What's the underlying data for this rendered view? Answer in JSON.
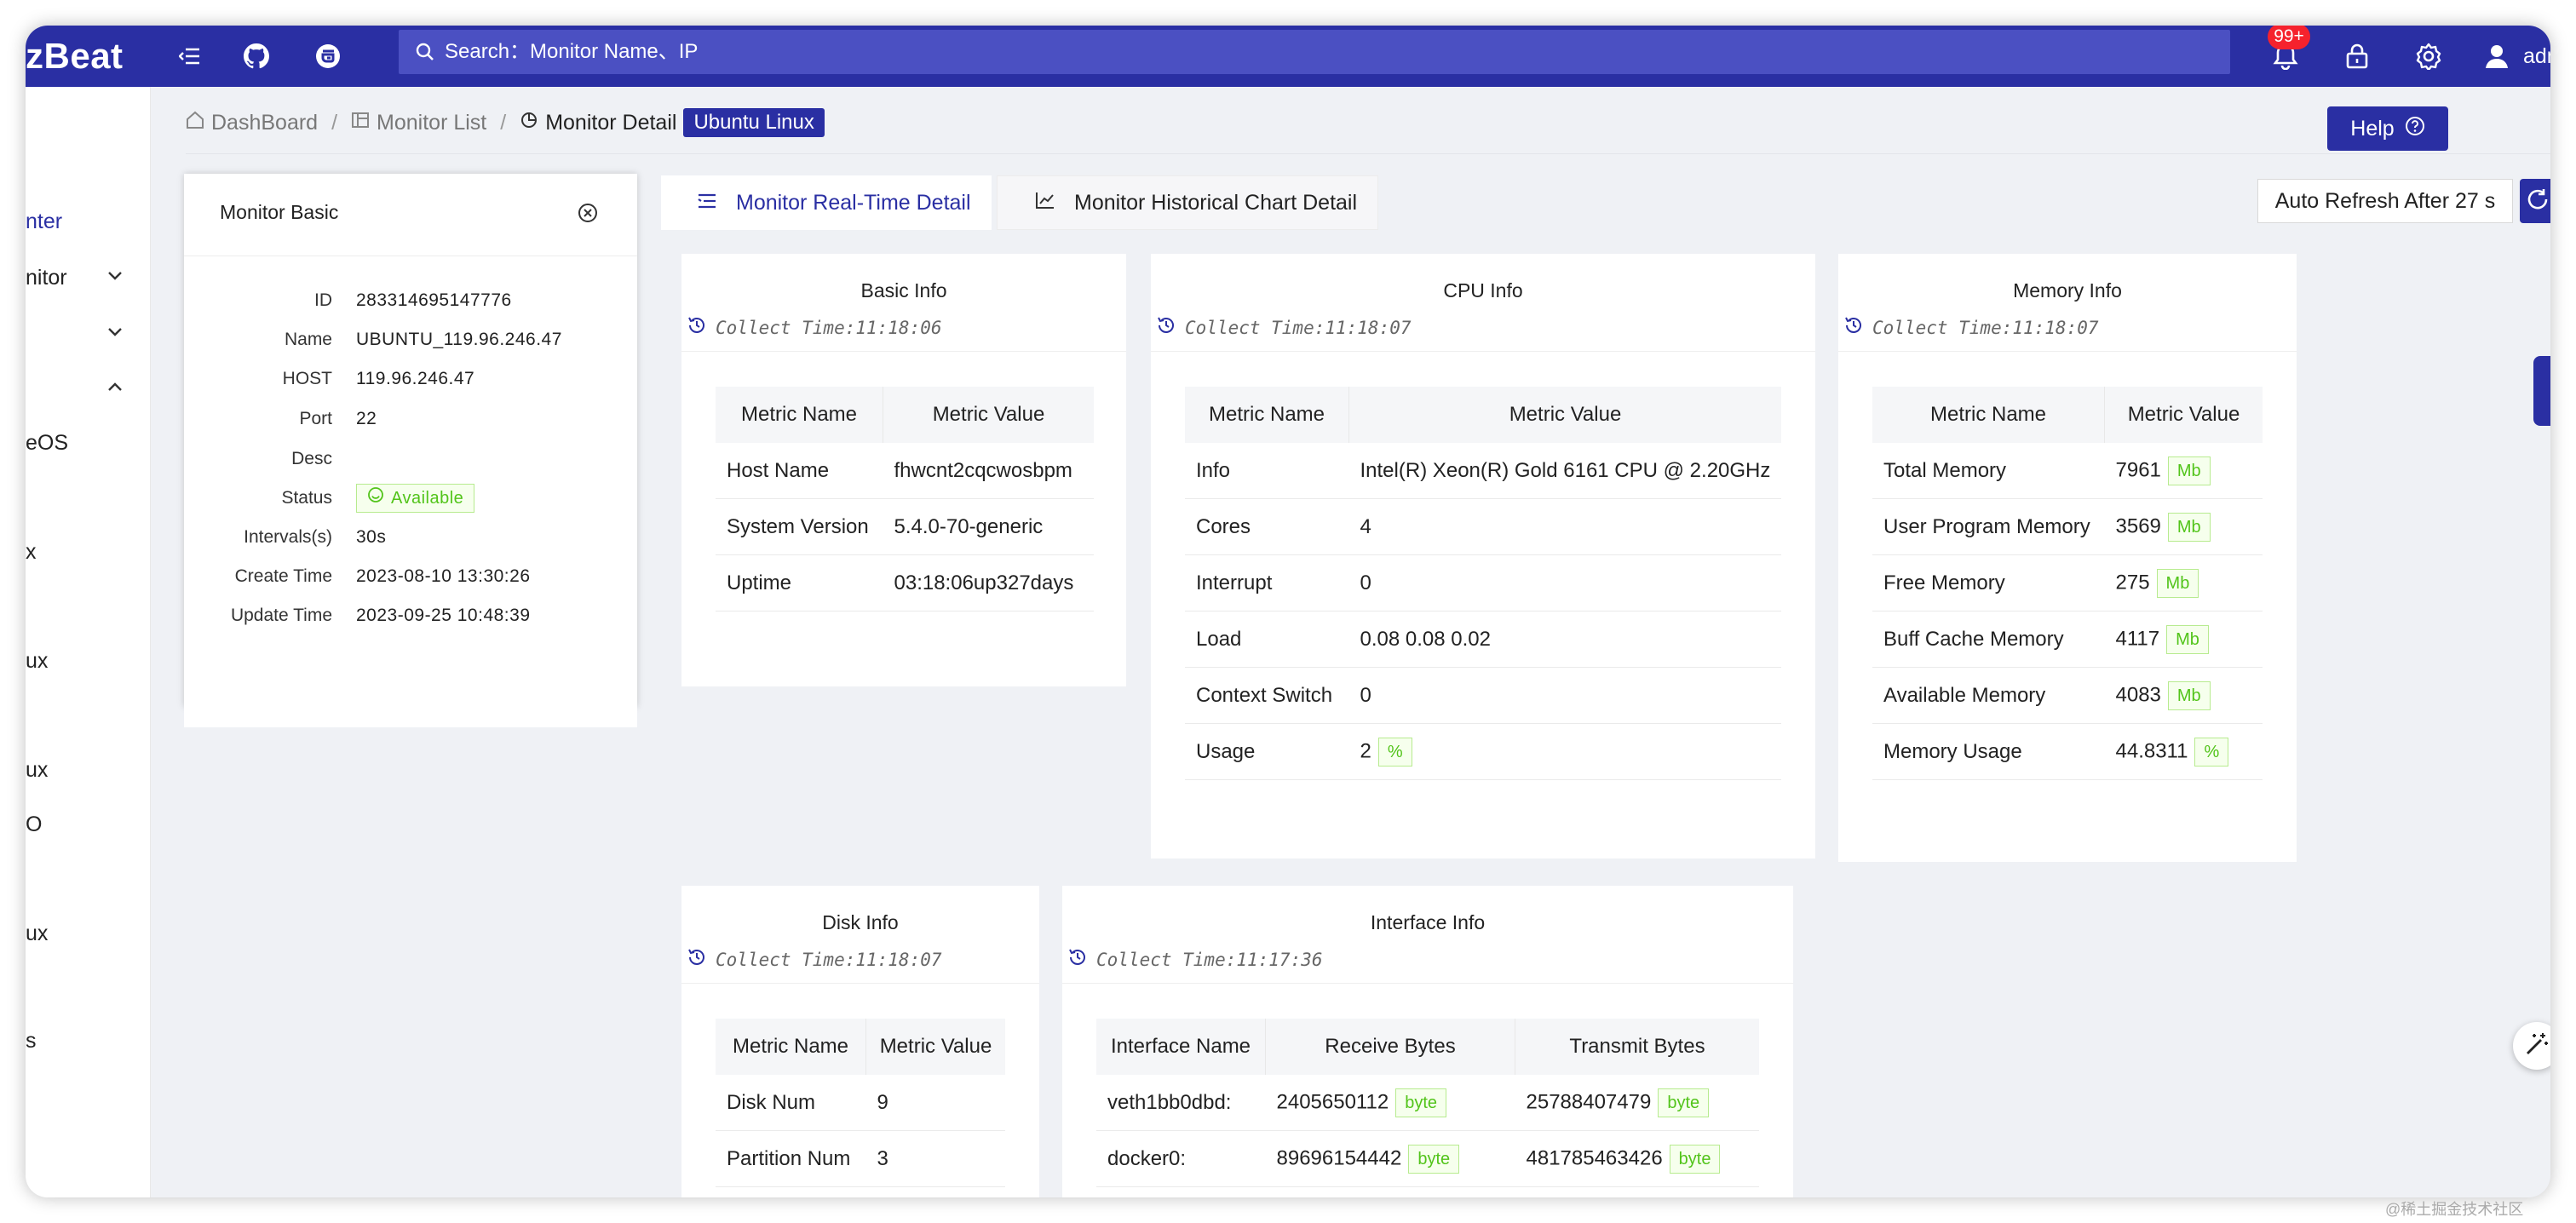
{
  "header": {
    "logo_text": "zBeat",
    "search_placeholder": "Search：Monitor Name、IP",
    "notification_count": "99+",
    "username": "adm"
  },
  "sidebar": {
    "items": [
      {
        "label": "nter",
        "active": true
      },
      {
        "label": "nitor",
        "chevron": "down"
      },
      {
        "label": "",
        "chevron": "down"
      },
      {
        "label": "",
        "chevron": "up"
      },
      {
        "label": "eOS"
      },
      {
        "label": "x"
      },
      {
        "label": "ux"
      },
      {
        "label": "ux"
      },
      {
        "label": "O"
      },
      {
        "label": "ux"
      },
      {
        "label": "s"
      }
    ]
  },
  "breadcrumb": {
    "dashboard": "DashBoard",
    "monitor_list": "Monitor List",
    "monitor_detail": "Monitor Detail",
    "tag": "Ubuntu Linux",
    "separator": "/"
  },
  "help_label": "Help",
  "tabs": {
    "realtime": "Monitor Real-Time Detail",
    "history": "Monitor Historical Chart Detail"
  },
  "refresh_label": "Auto Refresh After 27 s",
  "monitor_basic": {
    "title": "Monitor Basic",
    "rows": [
      {
        "key": "ID",
        "value": "283314695147776"
      },
      {
        "key": "Name",
        "value": "UBUNTU_119.96.246.47"
      },
      {
        "key": "HOST",
        "value": "119.96.246.47"
      },
      {
        "key": "Port",
        "value": "22"
      },
      {
        "key": "Desc",
        "value": ""
      },
      {
        "key": "Status",
        "value": "Available"
      },
      {
        "key": "Intervals(s)",
        "value": "30s"
      },
      {
        "key": "Create Time",
        "value": "2023-08-10 13:30:26"
      },
      {
        "key": "Update Time",
        "value": "2023-09-25 10:48:39"
      }
    ]
  },
  "cards": {
    "basic": {
      "title": "Basic Info",
      "collect_time": "Collect Time:11:18:06",
      "headers": [
        "Metric Name",
        "Metric Value"
      ],
      "rows": [
        {
          "name": "Host Name",
          "value": "fhwcnt2cqcwosbpm",
          "unit": ""
        },
        {
          "name": "System Version",
          "value": "5.4.0-70-generic",
          "unit": ""
        },
        {
          "name": "Uptime",
          "value": "03:18:06up327days",
          "unit": ""
        }
      ]
    },
    "cpu": {
      "title": "CPU Info",
      "collect_time": "Collect Time:11:18:07",
      "headers": [
        "Metric Name",
        "Metric Value"
      ],
      "rows": [
        {
          "name": "Info",
          "value": "Intel(R) Xeon(R) Gold 6161 CPU @ 2.20GHz",
          "unit": ""
        },
        {
          "name": "Cores",
          "value": "4",
          "unit": ""
        },
        {
          "name": "Interrupt",
          "value": "0",
          "unit": ""
        },
        {
          "name": "Load",
          "value": "0.08 0.08 0.02",
          "unit": ""
        },
        {
          "name": "Context Switch",
          "value": "0",
          "unit": ""
        },
        {
          "name": "Usage",
          "value": "2",
          "unit": "%"
        }
      ]
    },
    "memory": {
      "title": "Memory Info",
      "collect_time": "Collect Time:11:18:07",
      "headers": [
        "Metric Name",
        "Metric Value"
      ],
      "rows": [
        {
          "name": "Total Memory",
          "value": "7961",
          "unit": "Mb"
        },
        {
          "name": "User Program Memory",
          "value": "3569",
          "unit": "Mb"
        },
        {
          "name": "Free Memory",
          "value": "275",
          "unit": "Mb"
        },
        {
          "name": "Buff Cache Memory",
          "value": "4117",
          "unit": "Mb"
        },
        {
          "name": "Available Memory",
          "value": "4083",
          "unit": "Mb"
        },
        {
          "name": "Memory Usage",
          "value": "44.8311",
          "unit": "%"
        }
      ]
    },
    "disk": {
      "title": "Disk Info",
      "collect_time": "Collect Time:11:18:07",
      "headers": [
        "Metric Name",
        "Metric Value"
      ],
      "rows": [
        {
          "name": "Disk Num",
          "value": "9",
          "unit": ""
        },
        {
          "name": "Partition Num",
          "value": "3",
          "unit": ""
        }
      ]
    },
    "interface": {
      "title": "Interface Info",
      "collect_time": "Collect Time:11:17:36",
      "headers": [
        "Interface Name",
        "Receive Bytes",
        "Transmit Bytes"
      ],
      "rows": [
        {
          "name": "veth1bb0dbd:",
          "receive": "2405650112",
          "transmit": "25788407479",
          "unit": "byte"
        },
        {
          "name": "docker0:",
          "receive": "89696154442",
          "transmit": "481785463426",
          "unit": "byte"
        }
      ]
    }
  },
  "watermark": "@稀土掘金技术社区"
}
